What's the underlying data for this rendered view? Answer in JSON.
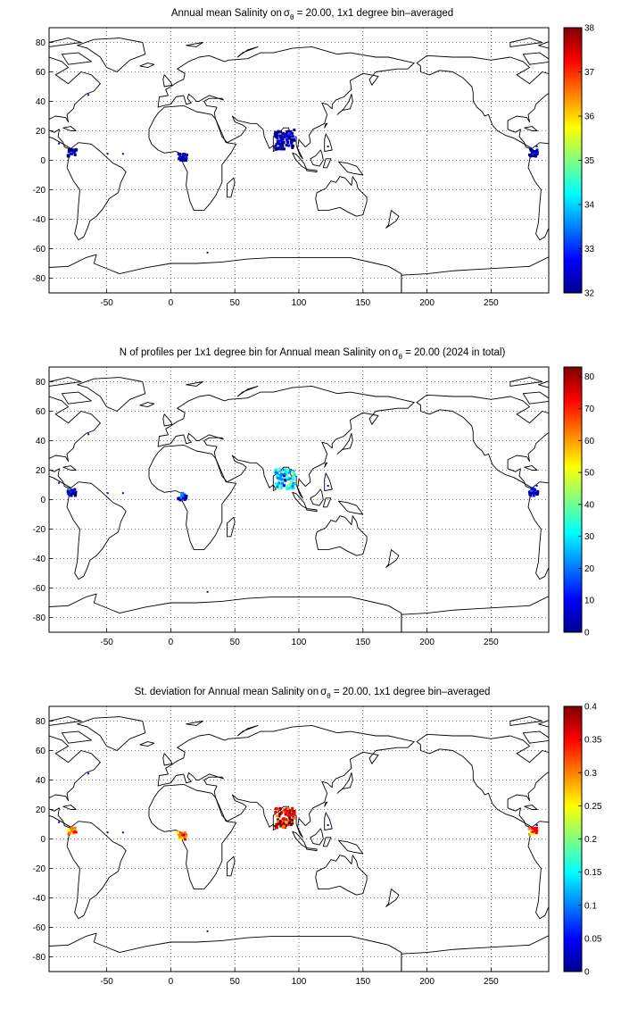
{
  "colormap": [
    "#00008f",
    "#0000ff",
    "#0080ff",
    "#00ffff",
    "#80ff80",
    "#ffff00",
    "#ff8000",
    "#ff0000",
    "#800000"
  ],
  "x_ticks": [
    "-50",
    "0",
    "50",
    "100",
    "150",
    "200",
    "250"
  ],
  "y_ticks": [
    "80",
    "60",
    "40",
    "20",
    "0",
    "-20",
    "-40",
    "-60",
    "-80"
  ],
  "map": {
    "x_range": [
      -95,
      295
    ],
    "y_range": [
      -90,
      90
    ],
    "grid": "dotted",
    "coastline_color": "#000000"
  },
  "panels": [
    {
      "title_pre": "Annual mean Salinity on",
      "title_sigma": "σ",
      "title_sub": "θ",
      "title_post": " = 20.00, 1x1 degree bin–averaged",
      "colorbar_ticks": [
        "38",
        "37",
        "36",
        "35",
        "34",
        "33",
        "32"
      ],
      "colorbar_range": [
        32,
        38
      ],
      "blobs": [
        {
          "region": "Bay of Bengal",
          "lon": 88,
          "lat": 15,
          "value_level": 0.05
        },
        {
          "region": "Caribbean / Panama",
          "lon": -78,
          "lat": 6,
          "value_level": 0.05
        },
        {
          "region": "Gulf of Guinea",
          "lon": 8,
          "lat": 3,
          "value_level": 0.05
        },
        {
          "region": "Caribbean (repeat)",
          "lon": 282,
          "lat": 6,
          "value_level": 0.05
        }
      ]
    },
    {
      "title_pre": "N of profiles per 1x1 degree bin for Annual mean Salinity on",
      "title_sigma": "σ",
      "title_sub": "θ",
      "title_post": " = 20.00 (2024 in total)",
      "colorbar_ticks": [
        "80",
        "70",
        "60",
        "50",
        "40",
        "30",
        "20",
        "10",
        "0"
      ],
      "colorbar_range": [
        0,
        83
      ],
      "blobs": [
        {
          "region": "Bay of Bengal",
          "lon": 88,
          "lat": 15,
          "value_level": 0.3
        },
        {
          "region": "Caribbean / Panama",
          "lon": -78,
          "lat": 6,
          "value_level": 0.05
        },
        {
          "region": "Gulf of Guinea",
          "lon": 8,
          "lat": 3,
          "value_level": 0.08
        },
        {
          "region": "Caribbean (repeat)",
          "lon": 282,
          "lat": 6,
          "value_level": 0.05
        }
      ]
    },
    {
      "title_pre": "St. deviation for Annual mean Salinity on",
      "title_sigma": "σ",
      "title_sub": "θ",
      "title_post": " = 20.00, 1x1 degree bin–averaged",
      "colorbar_ticks": [
        "0.4",
        "0.35",
        "0.3",
        "0.25",
        "0.2",
        "0.15",
        "0.1",
        "0.05",
        "0"
      ],
      "colorbar_range": [
        0,
        0.4
      ],
      "blobs": [
        {
          "region": "Bay of Bengal",
          "lon": 88,
          "lat": 15,
          "value_level": 0.9
        },
        {
          "region": "Caribbean / Panama",
          "lon": -78,
          "lat": 6,
          "value_level": 0.75
        },
        {
          "region": "Gulf of Guinea",
          "lon": 8,
          "lat": 3,
          "value_level": 0.8
        },
        {
          "region": "Caribbean (repeat)",
          "lon": 282,
          "lat": 6,
          "value_level": 0.75
        }
      ]
    }
  ]
}
